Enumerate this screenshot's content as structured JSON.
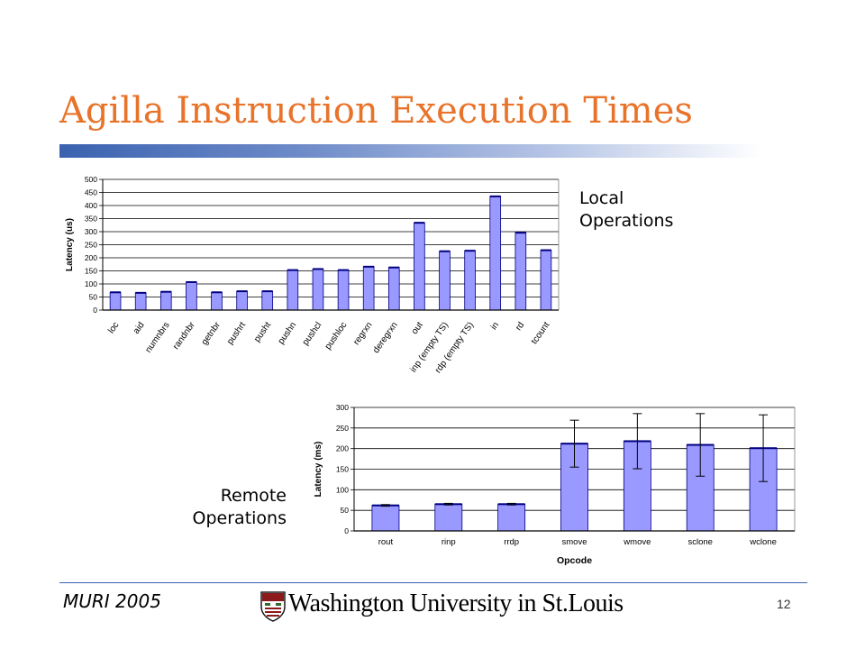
{
  "slide": {
    "title": "Agilla Instruction Execution Times",
    "local_label": "Local\nOperations",
    "remote_label": "Remote\nOperations",
    "footer_left": "MURI 2005",
    "footer_center": "Washington University in St.Louis",
    "page_number": "12"
  },
  "colors": {
    "title": "#E8732A",
    "bar_fill": "#9999FF",
    "bar_stroke": "#000080",
    "accent_bar": "#3B62B0"
  },
  "chart_data": [
    {
      "type": "bar",
      "name": "local",
      "categories": [
        "loc",
        "aid",
        "numnbrs",
        "randnbr",
        "getnbr",
        "pushrt",
        "pusht",
        "pushn",
        "pushcl",
        "pushloc",
        "regrxn",
        "deregrxn",
        "out",
        "inp (empty TS)",
        "rdp (empty TS)",
        "in",
        "rd",
        "tcount"
      ],
      "values": [
        68,
        66,
        70,
        107,
        68,
        72,
        72,
        153,
        157,
        153,
        166,
        163,
        334,
        225,
        227,
        435,
        296,
        229
      ],
      "title": "",
      "xlabel": "",
      "ylabel": "Latency (us)",
      "ylim": [
        0,
        500
      ],
      "yticks": [
        0,
        50,
        100,
        150,
        200,
        250,
        300,
        350,
        400,
        450,
        500
      ],
      "grid": true,
      "legend": "none"
    },
    {
      "type": "bar",
      "name": "remote",
      "categories": [
        "rout",
        "rinp",
        "rrdp",
        "smove",
        "wmove",
        "sclone",
        "wclone"
      ],
      "values": [
        62,
        65,
        65,
        212,
        218,
        209,
        201
      ],
      "errors": [
        2,
        2,
        2,
        57,
        67,
        76,
        81
      ],
      "title": "",
      "xlabel": "Opcode",
      "ylabel": "Latency (ms)",
      "ylim": [
        0,
        300
      ],
      "yticks": [
        0,
        50,
        100,
        150,
        200,
        250,
        300
      ],
      "grid": true,
      "legend": "none"
    }
  ]
}
